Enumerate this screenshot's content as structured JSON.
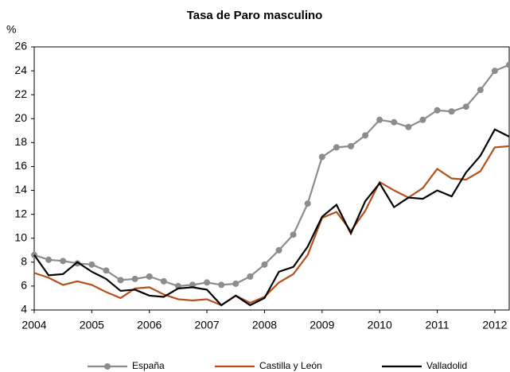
{
  "chart_data": {
    "type": "line",
    "title": "Tasa de Paro masculino",
    "y_label": "%",
    "x": [
      2004,
      2004.25,
      2004.5,
      2004.75,
      2005,
      2005.25,
      2005.5,
      2005.75,
      2006,
      2006.25,
      2006.5,
      2006.75,
      2007,
      2007.25,
      2007.5,
      2007.75,
      2008,
      2008.25,
      2008.5,
      2008.75,
      2009,
      2009.25,
      2009.5,
      2009.75,
      2010,
      2010.25,
      2010.5,
      2010.75,
      2011,
      2011.25,
      2011.5,
      2011.75,
      2012,
      2012.25
    ],
    "series": [
      {
        "name": "España",
        "color": "#8c8c8c",
        "marker": "circle",
        "values": [
          8.6,
          8.2,
          8.1,
          7.9,
          7.8,
          7.3,
          6.5,
          6.6,
          6.8,
          6.4,
          6.0,
          6.1,
          6.3,
          6.1,
          6.2,
          6.8,
          7.8,
          9.0,
          10.3,
          12.9,
          16.8,
          17.6,
          17.7,
          18.6,
          19.9,
          19.7,
          19.3,
          19.9,
          20.7,
          20.6,
          21.0,
          22.4,
          24.0,
          24.5
        ]
      },
      {
        "name": "Castilla y León",
        "color": "#b4501e",
        "values": [
          7.1,
          6.7,
          6.1,
          6.4,
          6.1,
          5.5,
          5.0,
          5.8,
          5.9,
          5.3,
          4.9,
          4.8,
          4.9,
          4.4,
          5.2,
          4.6,
          5.1,
          6.3,
          7.0,
          8.6,
          11.7,
          12.2,
          10.6,
          12.3,
          14.7,
          14.0,
          13.4,
          14.2,
          15.8,
          15.0,
          14.9,
          15.6,
          17.6,
          17.7
        ]
      },
      {
        "name": "Valladolid",
        "color": "#000000",
        "values": [
          8.6,
          6.9,
          7.0,
          8.0,
          7.2,
          6.6,
          5.6,
          5.7,
          5.2,
          5.1,
          5.8,
          5.9,
          5.7,
          4.4,
          5.2,
          4.4,
          5.0,
          7.2,
          7.6,
          9.3,
          11.8,
          12.8,
          10.4,
          13.1,
          14.6,
          12.6,
          13.4,
          13.3,
          14.0,
          13.5,
          15.5,
          16.9,
          19.1,
          18.5
        ]
      }
    ],
    "xlim": [
      2004,
      2012.25
    ],
    "xticks": [
      2004,
      2005,
      2006,
      2007,
      2008,
      2009,
      2010,
      2011,
      2012
    ],
    "ylim": [
      4,
      26
    ],
    "yticks": [
      4,
      6,
      8,
      10,
      12,
      14,
      16,
      18,
      20,
      22,
      24,
      26
    ],
    "grid": false,
    "legend": "bottom"
  }
}
